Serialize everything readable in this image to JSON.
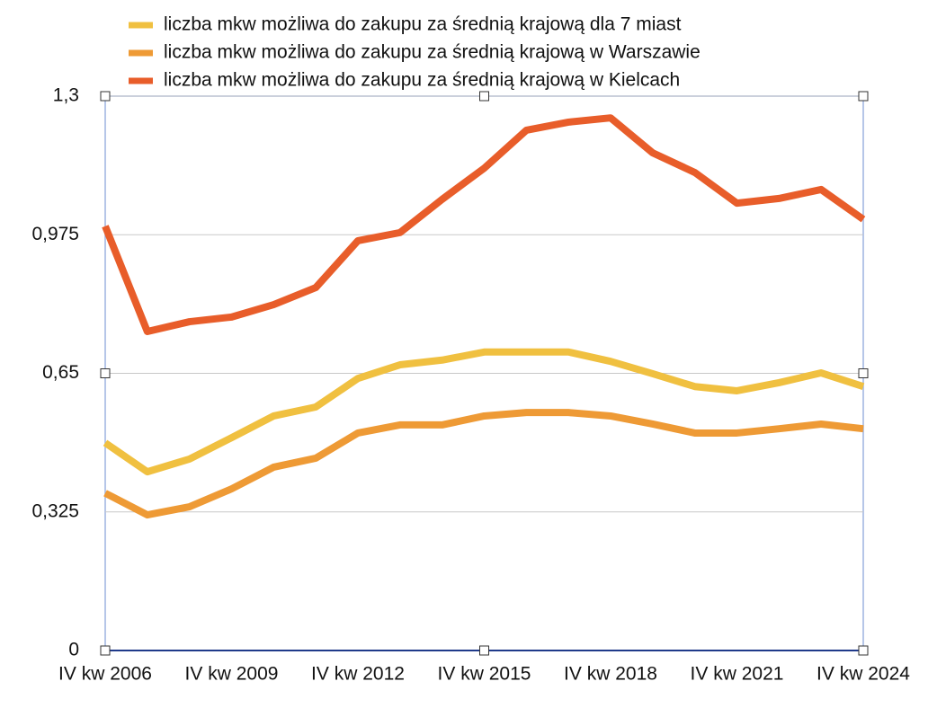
{
  "chart_data": {
    "type": "line",
    "categories": [
      "IV kw 2006",
      null,
      null,
      "IV kw 2009",
      null,
      null,
      "IV kw 2012",
      null,
      null,
      "IV kw 2015",
      null,
      null,
      "IV kw 2018",
      null,
      null,
      "IV kw 2021",
      null,
      null,
      "IV kw 2024"
    ],
    "series": [
      {
        "name": "liczba mkw możliwa do zakupu za średnią krajową dla 7 miast",
        "color": "#f0c040",
        "values": [
          0.487,
          0.419,
          0.449,
          0.499,
          0.55,
          0.571,
          0.638,
          0.67,
          0.681,
          0.7,
          0.7,
          0.7,
          0.678,
          0.649,
          0.619,
          0.609,
          0.628,
          0.651,
          0.619
        ]
      },
      {
        "name": "liczba mkw możliwa do zakupu za średnią krajową w Warszawie",
        "color": "#ee9a35",
        "values": [
          0.369,
          0.318,
          0.337,
          0.379,
          0.43,
          0.451,
          0.51,
          0.529,
          0.529,
          0.55,
          0.558,
          0.558,
          0.55,
          0.531,
          0.51,
          0.51,
          0.52,
          0.531,
          0.52
        ]
      },
      {
        "name": "liczba mkw możliwa do zakupu za średnią krajową w Kielcach",
        "color": "#e85d2a",
        "values": [
          0.995,
          0.748,
          0.771,
          0.782,
          0.811,
          0.851,
          0.961,
          0.98,
          1.058,
          1.131,
          1.22,
          1.239,
          1.249,
          1.167,
          1.121,
          1.049,
          1.06,
          1.081,
          1.011
        ]
      }
    ],
    "ylim": [
      0,
      1.3
    ],
    "yticks": [
      0,
      {
        "value": 0.325,
        "label": "0,325"
      },
      {
        "value": 0.65,
        "label": "0,65"
      },
      {
        "value": 0.975,
        "label": "0,975"
      },
      {
        "value": 1.3,
        "label": "1,3"
      }
    ],
    "grid": true,
    "legend": "top"
  }
}
